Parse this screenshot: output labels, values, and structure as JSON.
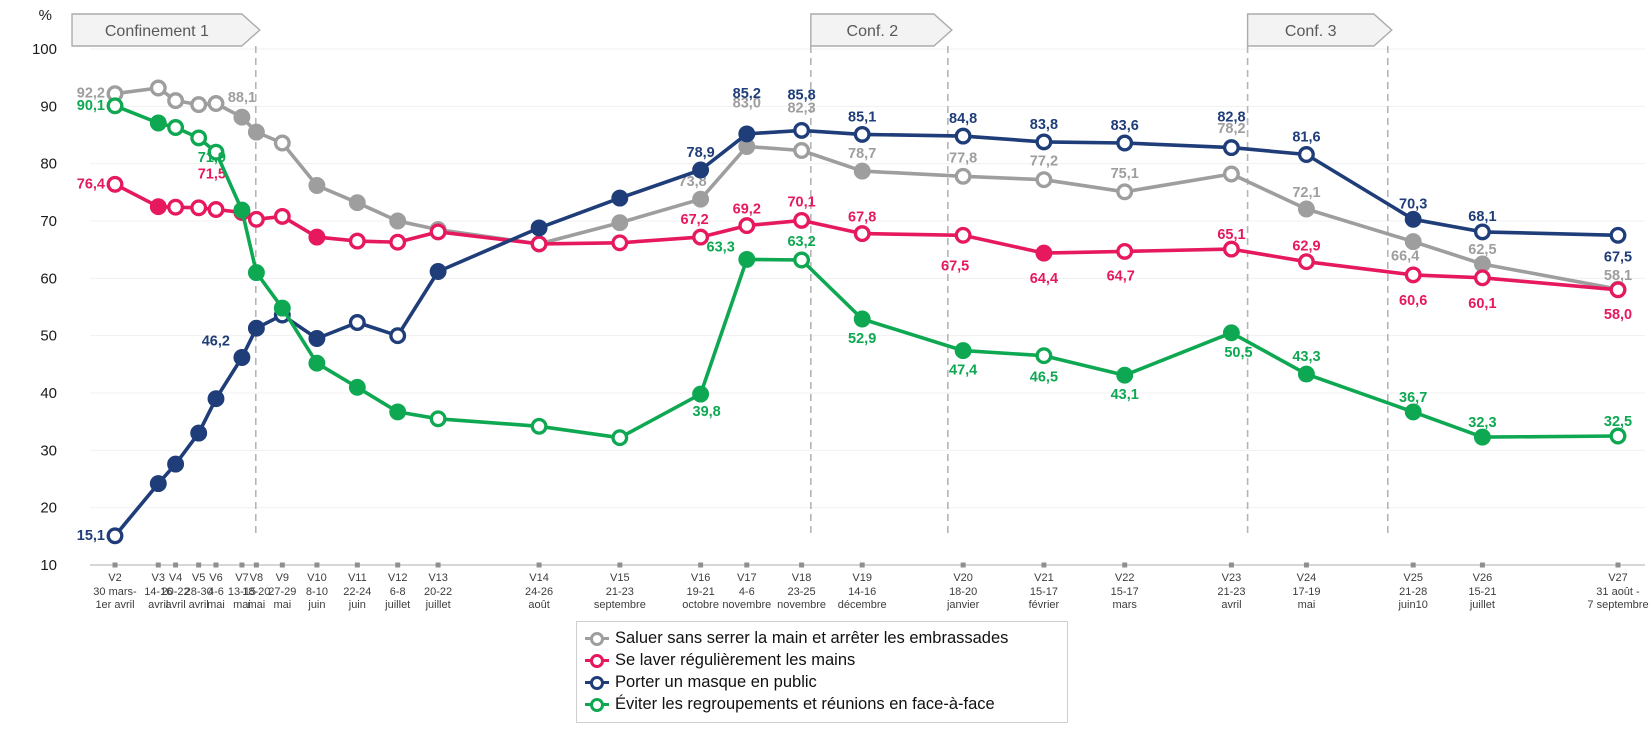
{
  "chart_data": {
    "type": "line",
    "title": "",
    "ylabel": "%",
    "ylim": [
      10,
      100
    ],
    "yticks": [
      100,
      90,
      80,
      70,
      60,
      50,
      40,
      30,
      20,
      10
    ],
    "grid": "horizontal-faint",
    "waves": [
      {
        "id": "V2",
        "date1": "30 mars-",
        "date2": "1er avril",
        "day": 0
      },
      {
        "id": "V3",
        "date1": "14-16",
        "date2": "avril",
        "day": 15
      },
      {
        "id": "V4",
        "date1": "20-22",
        "date2": "avril",
        "day": 21
      },
      {
        "id": "V5",
        "date1": "28-30",
        "date2": "avril",
        "day": 29
      },
      {
        "id": "V6",
        "date1": "4-6",
        "date2": "mai",
        "day": 35
      },
      {
        "id": "V7",
        "date1": "13-15",
        "date2": "mai",
        "day": 44
      },
      {
        "id": "V8",
        "date1": "18-20",
        "date2": "mai",
        "day": 49
      },
      {
        "id": "V9",
        "date1": "27-29",
        "date2": "mai",
        "day": 58
      },
      {
        "id": "V10",
        "date1": "8-10",
        "date2": "juin",
        "day": 70
      },
      {
        "id": "V11",
        "date1": "22-24",
        "date2": "juin",
        "day": 84
      },
      {
        "id": "V12",
        "date1": "6-8",
        "date2": "juillet",
        "day": 98
      },
      {
        "id": "V13",
        "date1": "20-22",
        "date2": "juillet",
        "day": 112
      },
      {
        "id": "V14",
        "date1": "24-26",
        "date2": "août",
        "day": 147
      },
      {
        "id": "V15",
        "date1": "21-23",
        "date2": "septembre",
        "day": 175
      },
      {
        "id": "V16",
        "date1": "19-21",
        "date2": "octobre",
        "day": 203
      },
      {
        "id": "V17",
        "date1": "4-6",
        "date2": "novembre",
        "day": 219
      },
      {
        "id": "V18",
        "date1": "23-25",
        "date2": "novembre",
        "day": 238
      },
      {
        "id": "V19",
        "date1": "14-16",
        "date2": "décembre",
        "day": 259
      },
      {
        "id": "V20",
        "date1": "18-20",
        "date2": "janvier",
        "day": 294
      },
      {
        "id": "V21",
        "date1": "15-17",
        "date2": "février",
        "day": 322
      },
      {
        "id": "V22",
        "date1": "15-17",
        "date2": "mars",
        "day": 350
      },
      {
        "id": "V23",
        "date1": "21-23",
        "date2": "avril",
        "day": 387
      },
      {
        "id": "V24",
        "date1": "17-19",
        "date2": "mai",
        "day": 413
      },
      {
        "id": "V25",
        "date1": "21-28",
        "date2": "juin10",
        "day": 450
      },
      {
        "id": "V26",
        "date1": "15-21",
        "date2": "juillet",
        "day": 474
      },
      {
        "id": "V27",
        "date1": "31 août -",
        "date2": "7 septembre",
        "day": 521
      }
    ],
    "confinements": [
      {
        "label": "Confinement 1",
        "start_day": -14.9,
        "end_day": 48.8,
        "line_at_start": false
      },
      {
        "label": "Conf. 2",
        "start_day": 241.2,
        "end_day": 288.7,
        "line_at_start": true
      },
      {
        "label": "Conf. 3",
        "start_day": 392.6,
        "end_day": 441.2,
        "line_at_start": true
      }
    ],
    "series": [
      {
        "key": "saluer",
        "name": "Saluer sans serrer la main et arrêter les embrassades",
        "color": "#9e9e9e",
        "values": [
          92.2,
          93.2,
          91.0,
          90.3,
          90.5,
          88.1,
          85.5,
          83.6,
          76.2,
          73.2,
          70.0,
          68.5,
          66.0,
          69.7,
          73.8,
          83.0,
          82.3,
          78.7,
          77.8,
          77.2,
          75.1,
          78.2,
          72.1,
          66.4,
          62.5,
          58.1
        ],
        "filled": [
          0,
          0,
          0,
          0,
          0,
          1,
          1,
          0,
          1,
          1,
          1,
          0,
          0,
          1,
          1,
          1,
          0,
          1,
          0,
          0,
          0,
          0,
          1,
          1,
          1,
          1
        ],
        "labels": [
          {
            "i": 0,
            "t": "92,2",
            "pos": "left"
          },
          {
            "i": 5,
            "t": "88,1",
            "dy": -15
          },
          {
            "i": 14,
            "t": "73,8",
            "dx": -8,
            "dy": -13
          },
          {
            "i": 15,
            "t": "83,0",
            "dy": -39
          },
          {
            "i": 16,
            "t": "82,3",
            "dy": -38
          },
          {
            "i": 17,
            "t": "78,7",
            "dy": -13
          },
          {
            "i": 18,
            "t": "77,8",
            "dy": -14
          },
          {
            "i": 19,
            "t": "77,2",
            "dy": -14
          },
          {
            "i": 20,
            "t": "75,1",
            "dy": -14
          },
          {
            "i": 21,
            "t": "78,2",
            "dy": -41
          },
          {
            "i": 22,
            "t": "72,1",
            "dy": -12
          },
          {
            "i": 23,
            "t": "66,4",
            "dx": -8,
            "dy": 19
          },
          {
            "i": 24,
            "t": "62,5",
            "dy": -10
          },
          {
            "i": 25,
            "t": "58,1",
            "dy": -9
          }
        ]
      },
      {
        "key": "laver",
        "name": "Se laver régulièrement les mains",
        "color": "#e6195f",
        "values": [
          76.4,
          72.5,
          72.4,
          72.3,
          72.0,
          71.5,
          70.3,
          70.8,
          67.2,
          66.5,
          66.3,
          68.1,
          66.0,
          66.2,
          67.2,
          69.2,
          70.1,
          67.8,
          67.5,
          64.4,
          64.7,
          65.1,
          62.9,
          60.6,
          60.1,
          58.0
        ],
        "filled": [
          0,
          1,
          0,
          0,
          0,
          0,
          0,
          0,
          1,
          0,
          0,
          0,
          0,
          0,
          0,
          0,
          0,
          0,
          0,
          1,
          0,
          0,
          0,
          0,
          0,
          0
        ],
        "labels": [
          {
            "i": 0,
            "t": "76,4",
            "pos": "left"
          },
          {
            "i": 5,
            "t": "71,5",
            "dx": -16,
            "dy": -34,
            "anchor": "end"
          },
          {
            "i": 14,
            "t": "67,2",
            "dx": -6,
            "dy": -13
          },
          {
            "i": 15,
            "t": "69,2",
            "dy": -12
          },
          {
            "i": 16,
            "t": "70,1",
            "dy": -14
          },
          {
            "i": 17,
            "t": "67,8",
            "dy": -12
          },
          {
            "i": 18,
            "t": "67,5",
            "dx": -8,
            "dy": 35
          },
          {
            "i": 19,
            "t": "64,4",
            "dy": 30
          },
          {
            "i": 20,
            "t": "64,7",
            "dx": -4,
            "dy": 29
          },
          {
            "i": 21,
            "t": "65,1",
            "dy": -10
          },
          {
            "i": 22,
            "t": "62,9",
            "dy": -11
          },
          {
            "i": 23,
            "t": "60,6",
            "dy": 30
          },
          {
            "i": 24,
            "t": "60,1",
            "dy": 30
          },
          {
            "i": 25,
            "t": "58,0",
            "dy": 29
          }
        ]
      },
      {
        "key": "masque",
        "name": "Porter un masque en public",
        "color": "#1f3d78",
        "values": [
          15.1,
          24.2,
          27.6,
          33.0,
          39.0,
          46.2,
          51.3,
          53.6,
          49.5,
          52.3,
          50.0,
          61.2,
          68.8,
          74.0,
          78.9,
          85.2,
          85.8,
          85.1,
          84.8,
          83.8,
          83.6,
          82.8,
          81.6,
          70.3,
          68.1,
          67.5
        ],
        "filled": [
          0,
          1,
          1,
          1,
          1,
          1,
          1,
          0,
          1,
          0,
          0,
          1,
          1,
          1,
          1,
          1,
          0,
          0,
          0,
          0,
          0,
          0,
          0,
          1,
          0,
          0
        ],
        "labels": [
          {
            "i": 0,
            "t": "15,1",
            "pos": "left"
          },
          {
            "i": 5,
            "t": "46,2",
            "dx": -12,
            "dy": -12,
            "anchor": "end"
          },
          {
            "i": 14,
            "t": "78,9",
            "dy": -13
          },
          {
            "i": 15,
            "t": "85,2",
            "dy": -36
          },
          {
            "i": 16,
            "t": "85,8",
            "dy": -31
          },
          {
            "i": 17,
            "t": "85,1",
            "dy": -13
          },
          {
            "i": 18,
            "t": "84,8",
            "dy": -13
          },
          {
            "i": 19,
            "t": "83,8",
            "dy": -13
          },
          {
            "i": 20,
            "t": "83,6",
            "dy": -13
          },
          {
            "i": 21,
            "t": "82,8",
            "dy": -26
          },
          {
            "i": 22,
            "t": "81,6",
            "dy": -13
          },
          {
            "i": 23,
            "t": "70,3",
            "dy": -11
          },
          {
            "i": 24,
            "t": "68,1",
            "dy": -11
          },
          {
            "i": 25,
            "t": "67,5",
            "dy": 26
          }
        ]
      },
      {
        "key": "eviter",
        "name": "Éviter les regroupements et réunions en face-à-face",
        "color": "#0fa852",
        "values": [
          90.1,
          87.1,
          86.3,
          84.5,
          82.0,
          71.9,
          61.0,
          54.8,
          45.2,
          41.0,
          36.7,
          35.5,
          34.2,
          32.2,
          39.8,
          63.3,
          63.2,
          52.9,
          47.4,
          46.5,
          43.1,
          50.5,
          43.3,
          36.7,
          32.3,
          32.5
        ],
        "filled": [
          0,
          1,
          0,
          0,
          0,
          1,
          1,
          1,
          1,
          1,
          1,
          0,
          0,
          0,
          1,
          1,
          0,
          1,
          1,
          0,
          1,
          1,
          1,
          1,
          1,
          0
        ],
        "labels": [
          {
            "i": 0,
            "t": "90,1",
            "pos": "left"
          },
          {
            "i": 5,
            "t": "71,9",
            "dx": -16,
            "dy": -48,
            "anchor": "end"
          },
          {
            "i": 14,
            "t": "39,8",
            "dx": 6,
            "dy": 22
          },
          {
            "i": 15,
            "t": "63,3",
            "dx": -12,
            "dy": -8,
            "anchor": "end"
          },
          {
            "i": 16,
            "t": "63,2",
            "dy": -14
          },
          {
            "i": 17,
            "t": "52,9",
            "dy": 24
          },
          {
            "i": 18,
            "t": "47,4",
            "dy": 24
          },
          {
            "i": 19,
            "t": "46,5",
            "dy": 26
          },
          {
            "i": 20,
            "t": "43,1",
            "dy": 24
          },
          {
            "i": 21,
            "t": "50,5",
            "dx": 7,
            "dy": 24
          },
          {
            "i": 22,
            "t": "43,3",
            "dy": -13
          },
          {
            "i": 23,
            "t": "36,7",
            "dy": -10
          },
          {
            "i": 24,
            "t": "32,3",
            "dy": -10
          },
          {
            "i": 25,
            "t": "32,5",
            "dy": -10
          }
        ]
      }
    ]
  },
  "legend": {
    "items": [
      {
        "label": "Saluer sans serrer la main et arrêter les embrassades",
        "color": "#9e9e9e"
      },
      {
        "label": "Se laver régulièrement les mains",
        "color": "#e6195f"
      },
      {
        "label": "Porter un masque en public",
        "color": "#1f3d78"
      },
      {
        "label": "Éviter les regroupements et réunions en face-à-face",
        "color": "#0fa852"
      }
    ]
  }
}
